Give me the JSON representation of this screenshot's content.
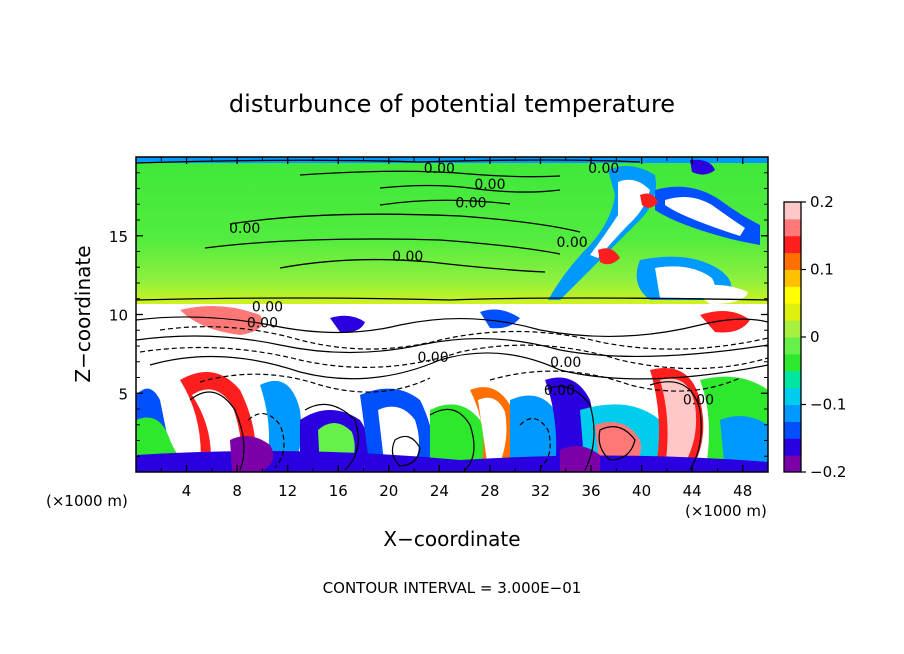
{
  "chart_data": {
    "type": "heatmap",
    "title": "disturbunce of potential temperature",
    "xlabel": "X−coordinate",
    "ylabel": "Z−coordinate",
    "x_unit": "(×1000 m)",
    "x_unit_right": "(×1000 m)",
    "xlim": [
      0,
      50
    ],
    "ylim": [
      0,
      20
    ],
    "x_ticks": [
      4,
      8,
      12,
      16,
      20,
      24,
      28,
      32,
      36,
      40,
      44,
      48
    ],
    "y_ticks": [
      5,
      10,
      15
    ],
    "footer": "CONTOUR INTERVAL = 3.000E−01",
    "colorbar": {
      "min": -0.2,
      "max": 0.2,
      "tick_values": [
        0.2,
        0.1,
        0,
        -0.1,
        -0.2
      ],
      "tick_labels": [
        "0.2",
        "0.1",
        "0",
        "−0.1",
        "−0.2"
      ],
      "colors": [
        "#7b00a8",
        "#2b00e0",
        "#0050ff",
        "#0099ff",
        "#00ccee",
        "#00e6a0",
        "#2ee82e",
        "#66f04a",
        "#a8f040",
        "#ddf010",
        "#ffff00",
        "#ffc000",
        "#ff7000",
        "#ff1e1e",
        "#ff7878",
        "#ffc8c8"
      ]
    },
    "contour_labels": [
      {
        "text": "0.00",
        "x": 24.0,
        "y": 19.3
      },
      {
        "text": "0.00",
        "x": 37.0,
        "y": 19.3
      },
      {
        "text": "0.00",
        "x": 28.0,
        "y": 18.3
      },
      {
        "text": "0.00",
        "x": 26.5,
        "y": 17.1
      },
      {
        "text": "0.00",
        "x": 8.6,
        "y": 15.5
      },
      {
        "text": "0.00",
        "x": 34.5,
        "y": 14.6
      },
      {
        "text": "0.00",
        "x": 21.5,
        "y": 13.7
      },
      {
        "text": "0.00",
        "x": 10.4,
        "y": 10.5
      },
      {
        "text": "0.00",
        "x": 10.0,
        "y": 9.5
      },
      {
        "text": "0.00",
        "x": 23.5,
        "y": 7.3
      },
      {
        "text": "0.00",
        "x": 34.0,
        "y": 7.0
      },
      {
        "text": "0.00",
        "x": 33.5,
        "y": 5.2
      },
      {
        "text": "0.00",
        "x": 44.5,
        "y": 4.6
      }
    ]
  }
}
